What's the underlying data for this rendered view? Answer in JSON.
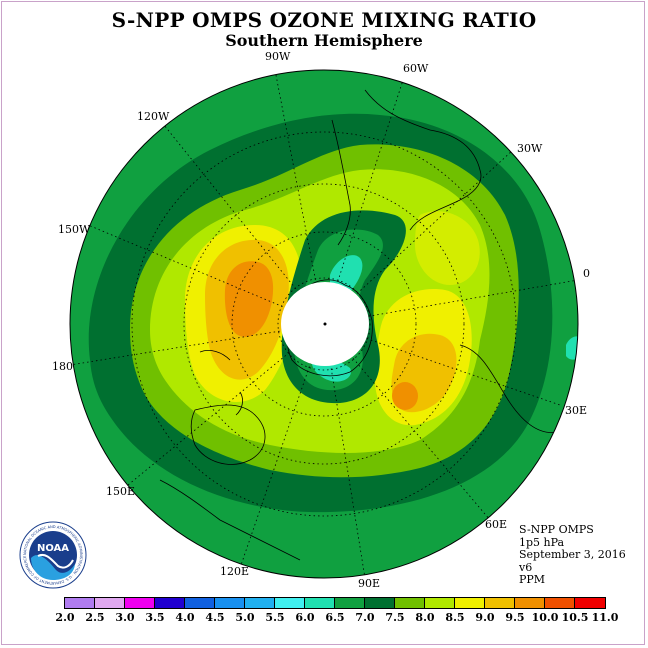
{
  "header": {
    "title": "S-NPP OMPS OZONE MIXING RATIO",
    "subtitle": "Southern Hemisphere"
  },
  "longitude_labels": [
    {
      "id": "lon-90w",
      "text": "90W"
    },
    {
      "id": "lon-60w",
      "text": "60W"
    },
    {
      "id": "lon-30w",
      "text": "30W"
    },
    {
      "id": "lon-0",
      "text": "0"
    },
    {
      "id": "lon-30e",
      "text": "30E"
    },
    {
      "id": "lon-60e",
      "text": "60E"
    },
    {
      "id": "lon-90e",
      "text": "90E"
    },
    {
      "id": "lon-120e",
      "text": "120E"
    },
    {
      "id": "lon-150e",
      "text": "150E"
    },
    {
      "id": "lon-180",
      "text": "180"
    },
    {
      "id": "lon-150w",
      "text": "150W"
    },
    {
      "id": "lon-120w",
      "text": "120W"
    }
  ],
  "info": {
    "instrument": "S-NPP OMPS",
    "level": "1p5 hPa",
    "date": "September 3, 2016",
    "version": "v6",
    "units": "PPM"
  },
  "logo": {
    "name": "NOAA",
    "ring_text": "NATIONAL OCEANIC AND ATMOSPHERIC ADMINISTRATION · U.S. DEPARTMENT OF COMMERCE"
  },
  "legend": {
    "ticks": [
      "2.0",
      "2.5",
      "3.0",
      "3.5",
      "4.0",
      "4.5",
      "5.0",
      "5.5",
      "6.0",
      "6.5",
      "7.0",
      "7.5",
      "8.0",
      "8.5",
      "9.0",
      "9.5",
      "10.0",
      "10.5",
      "11.0"
    ],
    "colors": [
      "#b07cf0",
      "#e0a8f0",
      "#f000f0",
      "#2000d0",
      "#1060e0",
      "#1890f0",
      "#20b0f0",
      "#40f0f0",
      "#20e0b0",
      "#10a040",
      "#007030",
      "#70c000",
      "#b0e800",
      "#f0f000",
      "#f0c000",
      "#f09000",
      "#f05000",
      "#f00000",
      "#805030"
    ]
  },
  "colors": {
    "level_6_0": "#20e0b0",
    "level_6_5": "#10a040",
    "level_7_0": "#007030",
    "level_7_5": "#70c000",
    "level_8_0": "#b0e800",
    "level_8_5": "#f0f000",
    "level_9_0": "#f0c000",
    "level_9_5": "#f09000",
    "pole_fill": "#ffffff"
  }
}
